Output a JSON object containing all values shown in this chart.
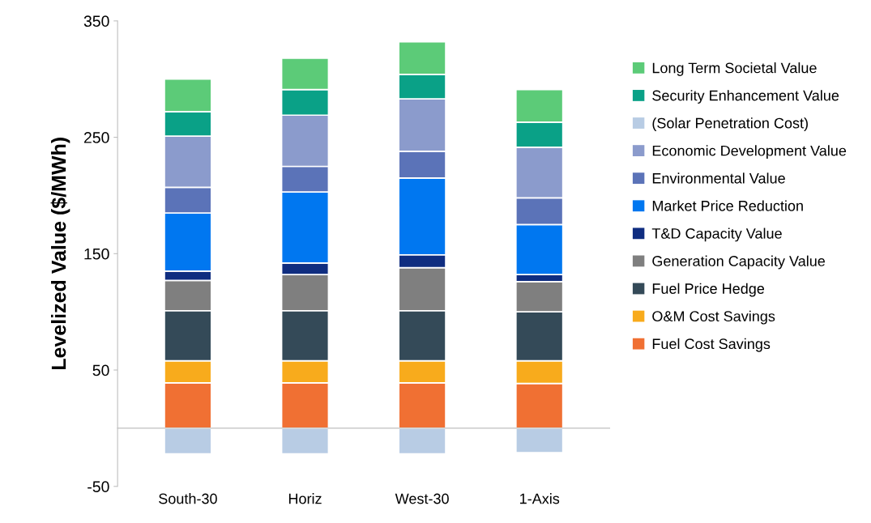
{
  "chart_data": {
    "type": "bar",
    "stacked": true,
    "ylabel": "Levelized Value ($/MWh)",
    "categories": [
      "South-30",
      "Horiz",
      "West-30",
      "1-Axis"
    ],
    "ylim": [
      -50,
      350
    ],
    "yticks": [
      -50,
      50,
      150,
      250,
      350
    ],
    "grid": false,
    "legend": "right",
    "series": [
      {
        "name": "Fuel Cost Savings",
        "color": "#f07033",
        "values": [
          39,
          39,
          39,
          38.5
        ]
      },
      {
        "name": "O&M Cost Savings",
        "color": "#f8ab1c",
        "values": [
          19,
          19,
          19,
          19.5
        ]
      },
      {
        "name": "Fuel Price Hedge",
        "color": "#344a58",
        "values": [
          43,
          43,
          43,
          42
        ]
      },
      {
        "name": "Generation Capacity Value",
        "color": "#7f7f7f",
        "values": [
          26,
          31,
          37,
          26
        ]
      },
      {
        "name": "T&D Capacity Value",
        "color": "#0f2d80",
        "values": [
          8,
          10,
          11,
          6
        ]
      },
      {
        "name": "Market Price Reduction",
        "color": "#0077f0",
        "values": [
          50,
          61,
          66,
          43
        ]
      },
      {
        "name": "Environmental Value",
        "color": "#5b73b8",
        "values": [
          22,
          22,
          23,
          23
        ]
      },
      {
        "name": "Economic Development Value",
        "color": "#8b9bcc",
        "values": [
          44,
          44,
          45,
          43.5
        ]
      },
      {
        "name": "(Solar Penetration Cost)",
        "color": "#b8cce4",
        "values": [
          -22,
          -22,
          -22,
          -21
        ]
      },
      {
        "name": "Security Enhancement Value",
        "color": "#0aa187",
        "values": [
          21,
          22,
          21,
          21.5
        ]
      },
      {
        "name": "Long Term Societal Value",
        "color": "#5ccb78",
        "values": [
          28,
          27,
          28,
          28
        ]
      }
    ]
  }
}
